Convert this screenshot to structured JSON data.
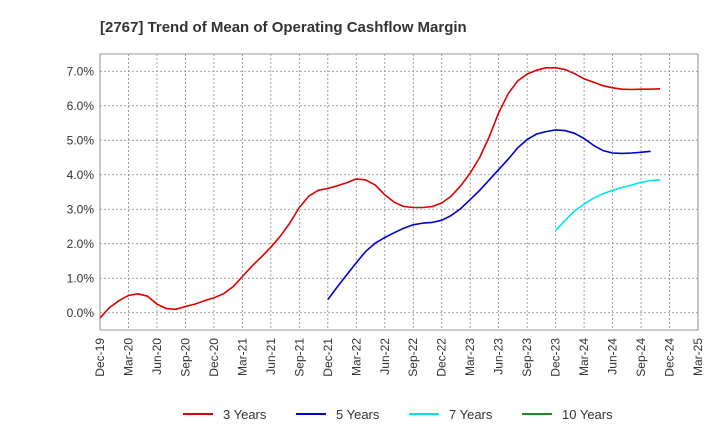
{
  "chart_data": {
    "type": "line",
    "title": "[2767]  Trend of Mean of Operating Cashflow Margin",
    "xlabel": "",
    "ylabel": "",
    "x_ticks": [
      "Dec-19",
      "Mar-20",
      "Jun-20",
      "Sep-20",
      "Dec-20",
      "Mar-21",
      "Jun-21",
      "Sep-21",
      "Dec-21",
      "Mar-22",
      "Jun-22",
      "Sep-22",
      "Dec-22",
      "Mar-23",
      "Jun-23",
      "Sep-23",
      "Dec-23",
      "Mar-24",
      "Jun-24",
      "Sep-24",
      "Dec-24",
      "Mar-25"
    ],
    "y_ticks": [
      "0.0%",
      "1.0%",
      "2.0%",
      "3.0%",
      "4.0%",
      "5.0%",
      "6.0%",
      "7.0%"
    ],
    "ylim": [
      -0.5,
      7.5
    ],
    "grid": true,
    "legend_position": "bottom",
    "series": [
      {
        "name": "3 Years",
        "color": "#dd0000",
        "start_index": 0,
        "values": [
          -0.15,
          0.15,
          0.35,
          0.5,
          0.55,
          0.48,
          0.25,
          0.12,
          0.1,
          0.18,
          0.25,
          0.35,
          0.43,
          0.55,
          0.75,
          1.05,
          1.35,
          1.62,
          1.9,
          2.22,
          2.6,
          3.05,
          3.38,
          3.55,
          3.6,
          3.68,
          3.77,
          3.88,
          3.85,
          3.7,
          3.42,
          3.2,
          3.08,
          3.05,
          3.05,
          3.08,
          3.18,
          3.38,
          3.68,
          4.05,
          4.5,
          5.1,
          5.8,
          6.35,
          6.72,
          6.92,
          7.03,
          7.1,
          7.1,
          7.05,
          6.93,
          6.78,
          6.68,
          6.58,
          6.52,
          6.48,
          6.47,
          6.48,
          6.48,
          6.49
        ]
      },
      {
        "name": "5 Years",
        "color": "#0000cc",
        "start_index": 24,
        "values": [
          0.38,
          0.75,
          1.1,
          1.45,
          1.78,
          2.02,
          2.18,
          2.32,
          2.45,
          2.55,
          2.6,
          2.62,
          2.68,
          2.82,
          3.02,
          3.28,
          3.55,
          3.85,
          4.15,
          4.45,
          4.78,
          5.02,
          5.18,
          5.25,
          5.3,
          5.28,
          5.2,
          5.05,
          4.85,
          4.7,
          4.63,
          4.62,
          4.63,
          4.65,
          4.68
        ]
      },
      {
        "name": "7 Years",
        "color": "#00e5ee",
        "start_index": 48,
        "values": [
          2.38,
          2.68,
          2.95,
          3.15,
          3.32,
          3.45,
          3.55,
          3.63,
          3.7,
          3.78,
          3.83,
          3.85
        ]
      },
      {
        "name": "10 Years",
        "color": "#228b22",
        "start_index": 0,
        "values": []
      }
    ]
  }
}
